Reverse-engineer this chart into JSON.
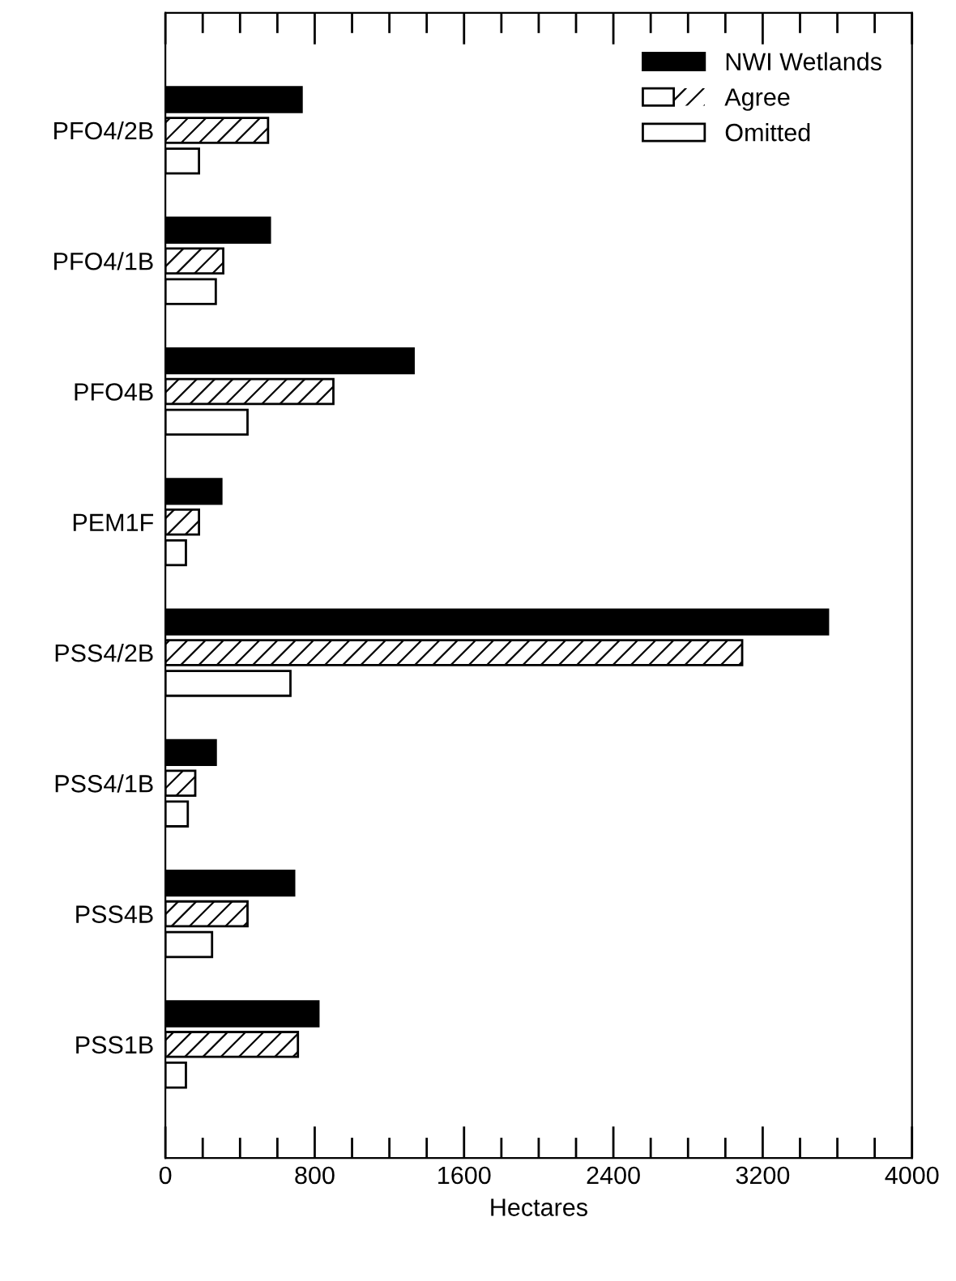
{
  "chart_data": {
    "type": "bar",
    "orientation": "horizontal",
    "xlabel": "Hectares",
    "categories": [
      "PFO4/2B",
      "PFO4/1B",
      "PFO4B",
      "PEM1F",
      "PSS4/2B",
      "PSS4/1B",
      "PSS4B",
      "PSS1B"
    ],
    "series": [
      {
        "name": "NWI Wetlands",
        "color": "#000000",
        "values": [
          730,
          560,
          1330,
          300,
          3550,
          270,
          690,
          820
        ]
      },
      {
        "name": "Agree",
        "color": "#ffffff",
        "values": [
          550,
          310,
          900,
          180,
          3090,
          160,
          440,
          710
        ]
      },
      {
        "name": "Omitted",
        "color": "#ffffff",
        "values": [
          180,
          270,
          440,
          110,
          670,
          120,
          250,
          110
        ]
      }
    ],
    "xlim": [
      0,
      4000
    ],
    "xticks": [
      0,
      {
        "value": 200,
        "label": null
      },
      {
        "value": 400,
        "label": null
      },
      {
        "value": 600,
        "label": null
      },
      800,
      {
        "value": 1000,
        "label": null
      },
      {
        "value": 1200,
        "label": null
      },
      {
        "value": 1400,
        "label": null
      },
      1600,
      {
        "value": 1800,
        "label": null
      },
      {
        "value": 2000,
        "label": null
      },
      {
        "value": 2200,
        "label": null
      },
      2400,
      {
        "value": 2600,
        "label": null
      },
      {
        "value": 2800,
        "label": null
      },
      {
        "value": 3000,
        "label": null
      },
      3200,
      {
        "value": 3400,
        "label": null
      },
      {
        "value": 3600,
        "label": null
      },
      {
        "value": 3800,
        "label": null
      },
      4000
    ],
    "legend": "top right",
    "grid": false
  }
}
